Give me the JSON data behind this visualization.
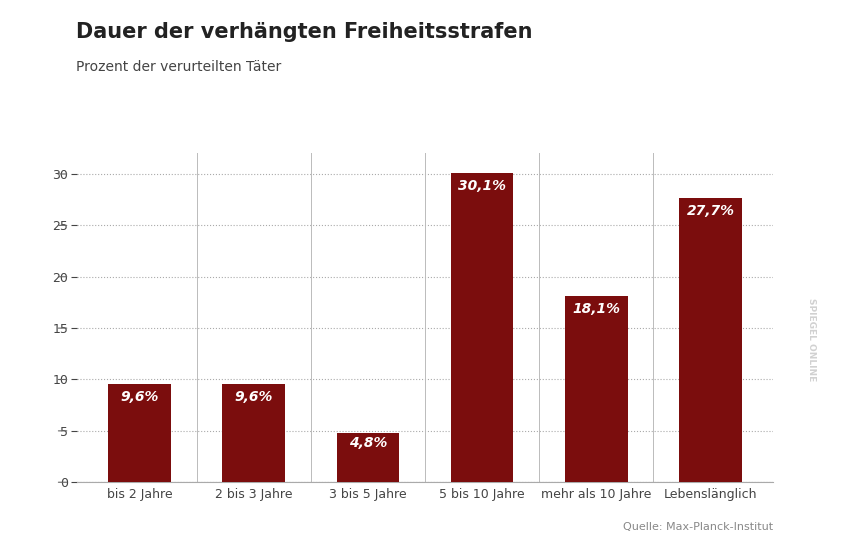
{
  "title": "Dauer der verhängten Freiheitsstrafen",
  "subtitle": "Prozent der verurteilten Täter",
  "categories": [
    "bis 2 Jahre",
    "2 bis 3 Jahre",
    "3 bis 5 Jahre",
    "5 bis 10 Jahre",
    "mehr als 10 Jahre",
    "Lebenslänglich"
  ],
  "values": [
    9.6,
    9.6,
    4.8,
    30.1,
    18.1,
    27.7
  ],
  "labels": [
    "9,6%",
    "9,6%",
    "4,8%",
    "30,1%",
    "18,1%",
    "27,7%"
  ],
  "bar_color": "#7B0D0D",
  "background_color": "#FFFFFF",
  "title_color": "#222222",
  "subtitle_color": "#444444",
  "label_color": "#FFFFFF",
  "source_text": "Quelle: Max-Planck-Institut",
  "watermark_text": "SPIEGEL ONLINE",
  "ylim": [
    0,
    32
  ],
  "yticks": [
    0,
    5,
    10,
    15,
    20,
    25,
    30
  ],
  "title_fontsize": 15,
  "subtitle_fontsize": 10,
  "label_fontsize": 10,
  "tick_fontsize": 9,
  "source_fontsize": 8
}
